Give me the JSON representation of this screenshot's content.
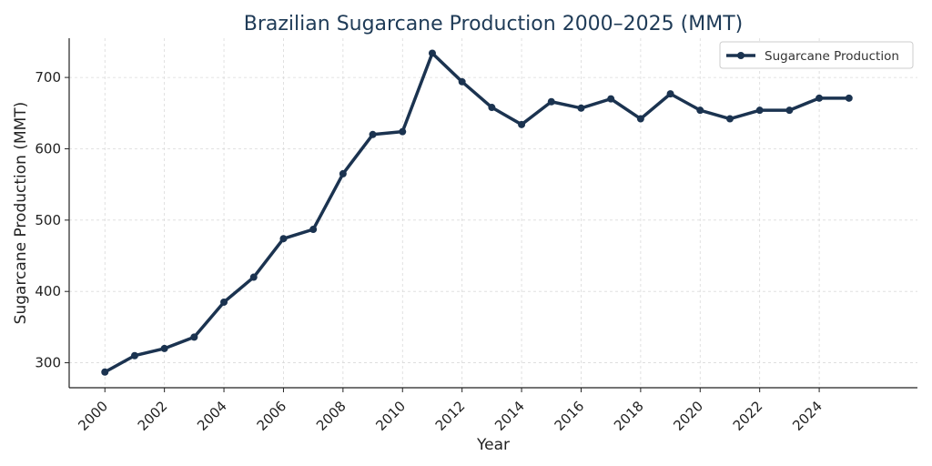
{
  "chart_data": {
    "type": "line",
    "title": "Brazilian Sugarcane Production 2000–2025 (MMT)",
    "xlabel": "Year",
    "ylabel": "Sugarcane Production (MMT)",
    "xlim": [
      1998.8,
      2027.3
    ],
    "ylim": [
      265,
      755
    ],
    "xticks": [
      2000,
      2002,
      2004,
      2006,
      2008,
      2010,
      2012,
      2014,
      2016,
      2018,
      2020,
      2022,
      2024
    ],
    "yticks": [
      300,
      400,
      500,
      600,
      700
    ],
    "grid": true,
    "legend_position": "top-right",
    "series": [
      {
        "name": "Sugarcane Production",
        "color": "#1b3350",
        "x": [
          2000,
          2001,
          2002,
          2003,
          2004,
          2005,
          2006,
          2007,
          2008,
          2009,
          2010,
          2011,
          2012,
          2013,
          2014,
          2015,
          2016,
          2017,
          2018,
          2019,
          2020,
          2021,
          2022,
          2023,
          2024,
          2025
        ],
        "values": [
          287,
          310,
          320,
          336,
          385,
          420,
          474,
          487,
          565,
          620,
          624,
          734,
          694,
          658,
          634,
          666,
          657,
          670,
          642,
          677,
          654,
          642,
          654,
          654,
          671,
          671
        ]
      }
    ]
  }
}
